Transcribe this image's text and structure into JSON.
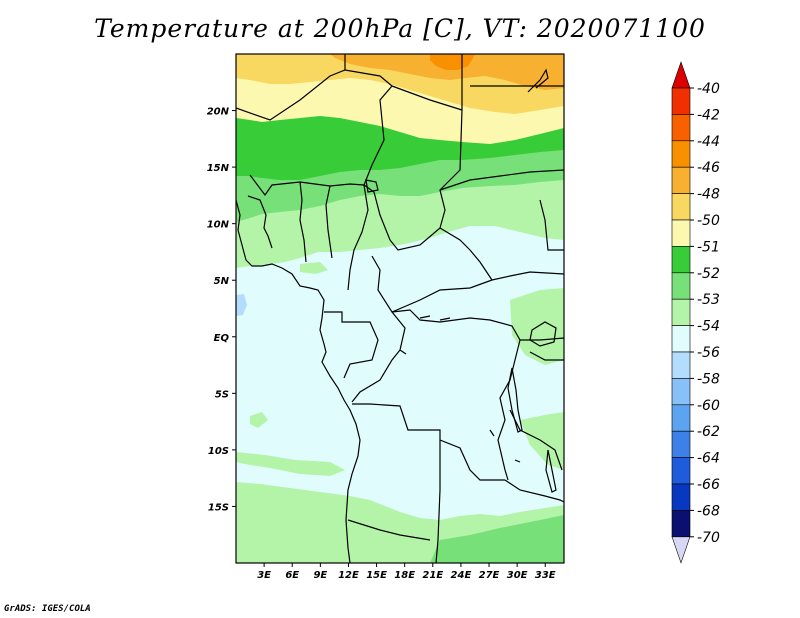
{
  "title": "Temperature at 200hPa [C], VT: 2020071100",
  "credit": "GrADS: IGES/COLA",
  "map": {
    "lon_range": [
      0,
      35
    ],
    "lat_range": [
      -20,
      25
    ],
    "lon_ticks": [
      {
        "value": 3,
        "label": "3E"
      },
      {
        "value": 6,
        "label": "6E"
      },
      {
        "value": 9,
        "label": "9E"
      },
      {
        "value": 12,
        "label": "12E"
      },
      {
        "value": 15,
        "label": "15E"
      },
      {
        "value": 18,
        "label": "18E"
      },
      {
        "value": 21,
        "label": "21E"
      },
      {
        "value": 24,
        "label": "24E"
      },
      {
        "value": 27,
        "label": "27E"
      },
      {
        "value": 30,
        "label": "30E"
      },
      {
        "value": 33,
        "label": "33E"
      }
    ],
    "lat_ticks": [
      {
        "value": 20,
        "label": "20N"
      },
      {
        "value": 15,
        "label": "15N"
      },
      {
        "value": 10,
        "label": "10N"
      },
      {
        "value": 5,
        "label": "5N"
      },
      {
        "value": 0,
        "label": "EQ"
      },
      {
        "value": -5,
        "label": "5S"
      },
      {
        "value": -10,
        "label": "10S"
      },
      {
        "value": -15,
        "label": "15S"
      }
    ]
  },
  "colorbar": {
    "levels": [
      "-40",
      "-42",
      "-44",
      "-46",
      "-48",
      "-50",
      "-51",
      "-52",
      "-53",
      "-54",
      "-56",
      "-58",
      "-60",
      "-62",
      "-64",
      "-66",
      "-68",
      "-70"
    ],
    "colors": [
      "#dd0000",
      "#f03000",
      "#f86000",
      "#f89000",
      "#f8b030",
      "#f8d860",
      "#fcf8b0",
      "#38cc38",
      "#78e078",
      "#b4f4a8",
      "#e0fcfc",
      "#b4dcfc",
      "#88c0f8",
      "#5ca4f0",
      "#3c80e8",
      "#1e5cdc",
      "#0838c0",
      "#0a1070",
      "#d8d8f4"
    ]
  }
}
